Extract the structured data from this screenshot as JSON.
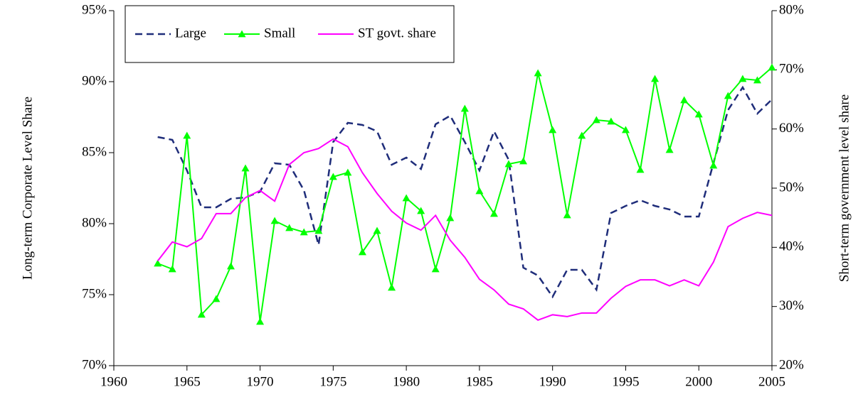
{
  "chart_data": {
    "type": "line",
    "x": [
      1963,
      1964,
      1965,
      1966,
      1967,
      1968,
      1969,
      1970,
      1971,
      1972,
      1973,
      1974,
      1975,
      1976,
      1977,
      1978,
      1979,
      1980,
      1981,
      1982,
      1983,
      1984,
      1985,
      1986,
      1987,
      1988,
      1989,
      1990,
      1991,
      1992,
      1993,
      1994,
      1995,
      1996,
      1997,
      1998,
      1999,
      2000,
      2001,
      2002,
      2003,
      2004,
      2005
    ],
    "y_label": "Long-term  Corporate Level  Share",
    "y2_label": "Short-term government  level  share",
    "xlim": [
      1960,
      2005
    ],
    "xticks": [
      1960,
      1965,
      1970,
      1975,
      1980,
      1985,
      1990,
      1995,
      2000,
      2005
    ],
    "ylim": [
      70,
      95
    ],
    "yticks": [
      {
        "value": 70,
        "label": "70%"
      },
      {
        "value": 75,
        "label": "75%"
      },
      {
        "value": 80,
        "label": "80%"
      },
      {
        "value": 85,
        "label": "85%"
      },
      {
        "value": 90,
        "label": "90%"
      },
      {
        "value": 95,
        "label": "95%"
      }
    ],
    "y2lim": [
      20,
      80
    ],
    "y2ticks": [
      {
        "value": 20,
        "label": "20%"
      },
      {
        "value": 30,
        "label": "30%"
      },
      {
        "value": 40,
        "label": "40%"
      },
      {
        "value": 50,
        "label": "50%"
      },
      {
        "value": 60,
        "label": "60%"
      },
      {
        "value": 70,
        "label": "70%"
      },
      {
        "value": 80,
        "label": "80%"
      }
    ],
    "legend": "top-left",
    "series": [
      {
        "name": "Large",
        "color": "#1f2d7a",
        "dash": true,
        "values": [
          86.1,
          85.9,
          83.75,
          81.15,
          81.15,
          81.75,
          81.85,
          82.25,
          84.25,
          84.15,
          82.35,
          78.5,
          85.75,
          87.1,
          86.95,
          86.5,
          84.15,
          84.65,
          83.85,
          87.0,
          87.6,
          85.75,
          83.75,
          86.5,
          84.5,
          76.9,
          76.35,
          74.85,
          76.75,
          76.75,
          75.35,
          80.75,
          81.25,
          81.65,
          81.25,
          81.0,
          80.5,
          80.5,
          84.25,
          88.0,
          89.6,
          87.75,
          88.75
        ]
      },
      {
        "name": "Small",
        "color": "#00ff00",
        "marker": "triangle",
        "values": [
          77.2,
          76.8,
          86.2,
          73.6,
          74.7,
          77.0,
          83.9,
          73.1,
          80.2,
          79.7,
          79.4,
          79.5,
          83.3,
          83.6,
          78.0,
          79.5,
          75.5,
          81.8,
          80.9,
          76.8,
          80.4,
          88.1,
          82.3,
          80.7,
          84.2,
          84.4,
          90.6,
          86.6,
          80.6,
          86.2,
          87.3,
          87.2,
          86.6,
          83.8,
          90.2,
          85.2,
          88.7,
          87.7,
          84.1,
          89.0,
          90.2,
          90.1,
          91.0
        ]
      },
      {
        "name": "ST govt. share",
        "color": "#ff00ff",
        "axis": "y2",
        "values": [
          37.7,
          40.9,
          40.1,
          41.5,
          45.7,
          45.7,
          48.4,
          49.6,
          47.8,
          54.0,
          56.0,
          56.7,
          58.3,
          57.0,
          52.6,
          49.1,
          46.1,
          44.1,
          42.9,
          45.4,
          41.2,
          38.3,
          34.6,
          32.8,
          30.4,
          29.6,
          27.7,
          28.6,
          28.3,
          28.9,
          28.9,
          31.4,
          33.4,
          34.5,
          34.5,
          33.5,
          34.5,
          33.5,
          37.5,
          43.5,
          44.9,
          45.9,
          45.4
        ]
      }
    ]
  }
}
